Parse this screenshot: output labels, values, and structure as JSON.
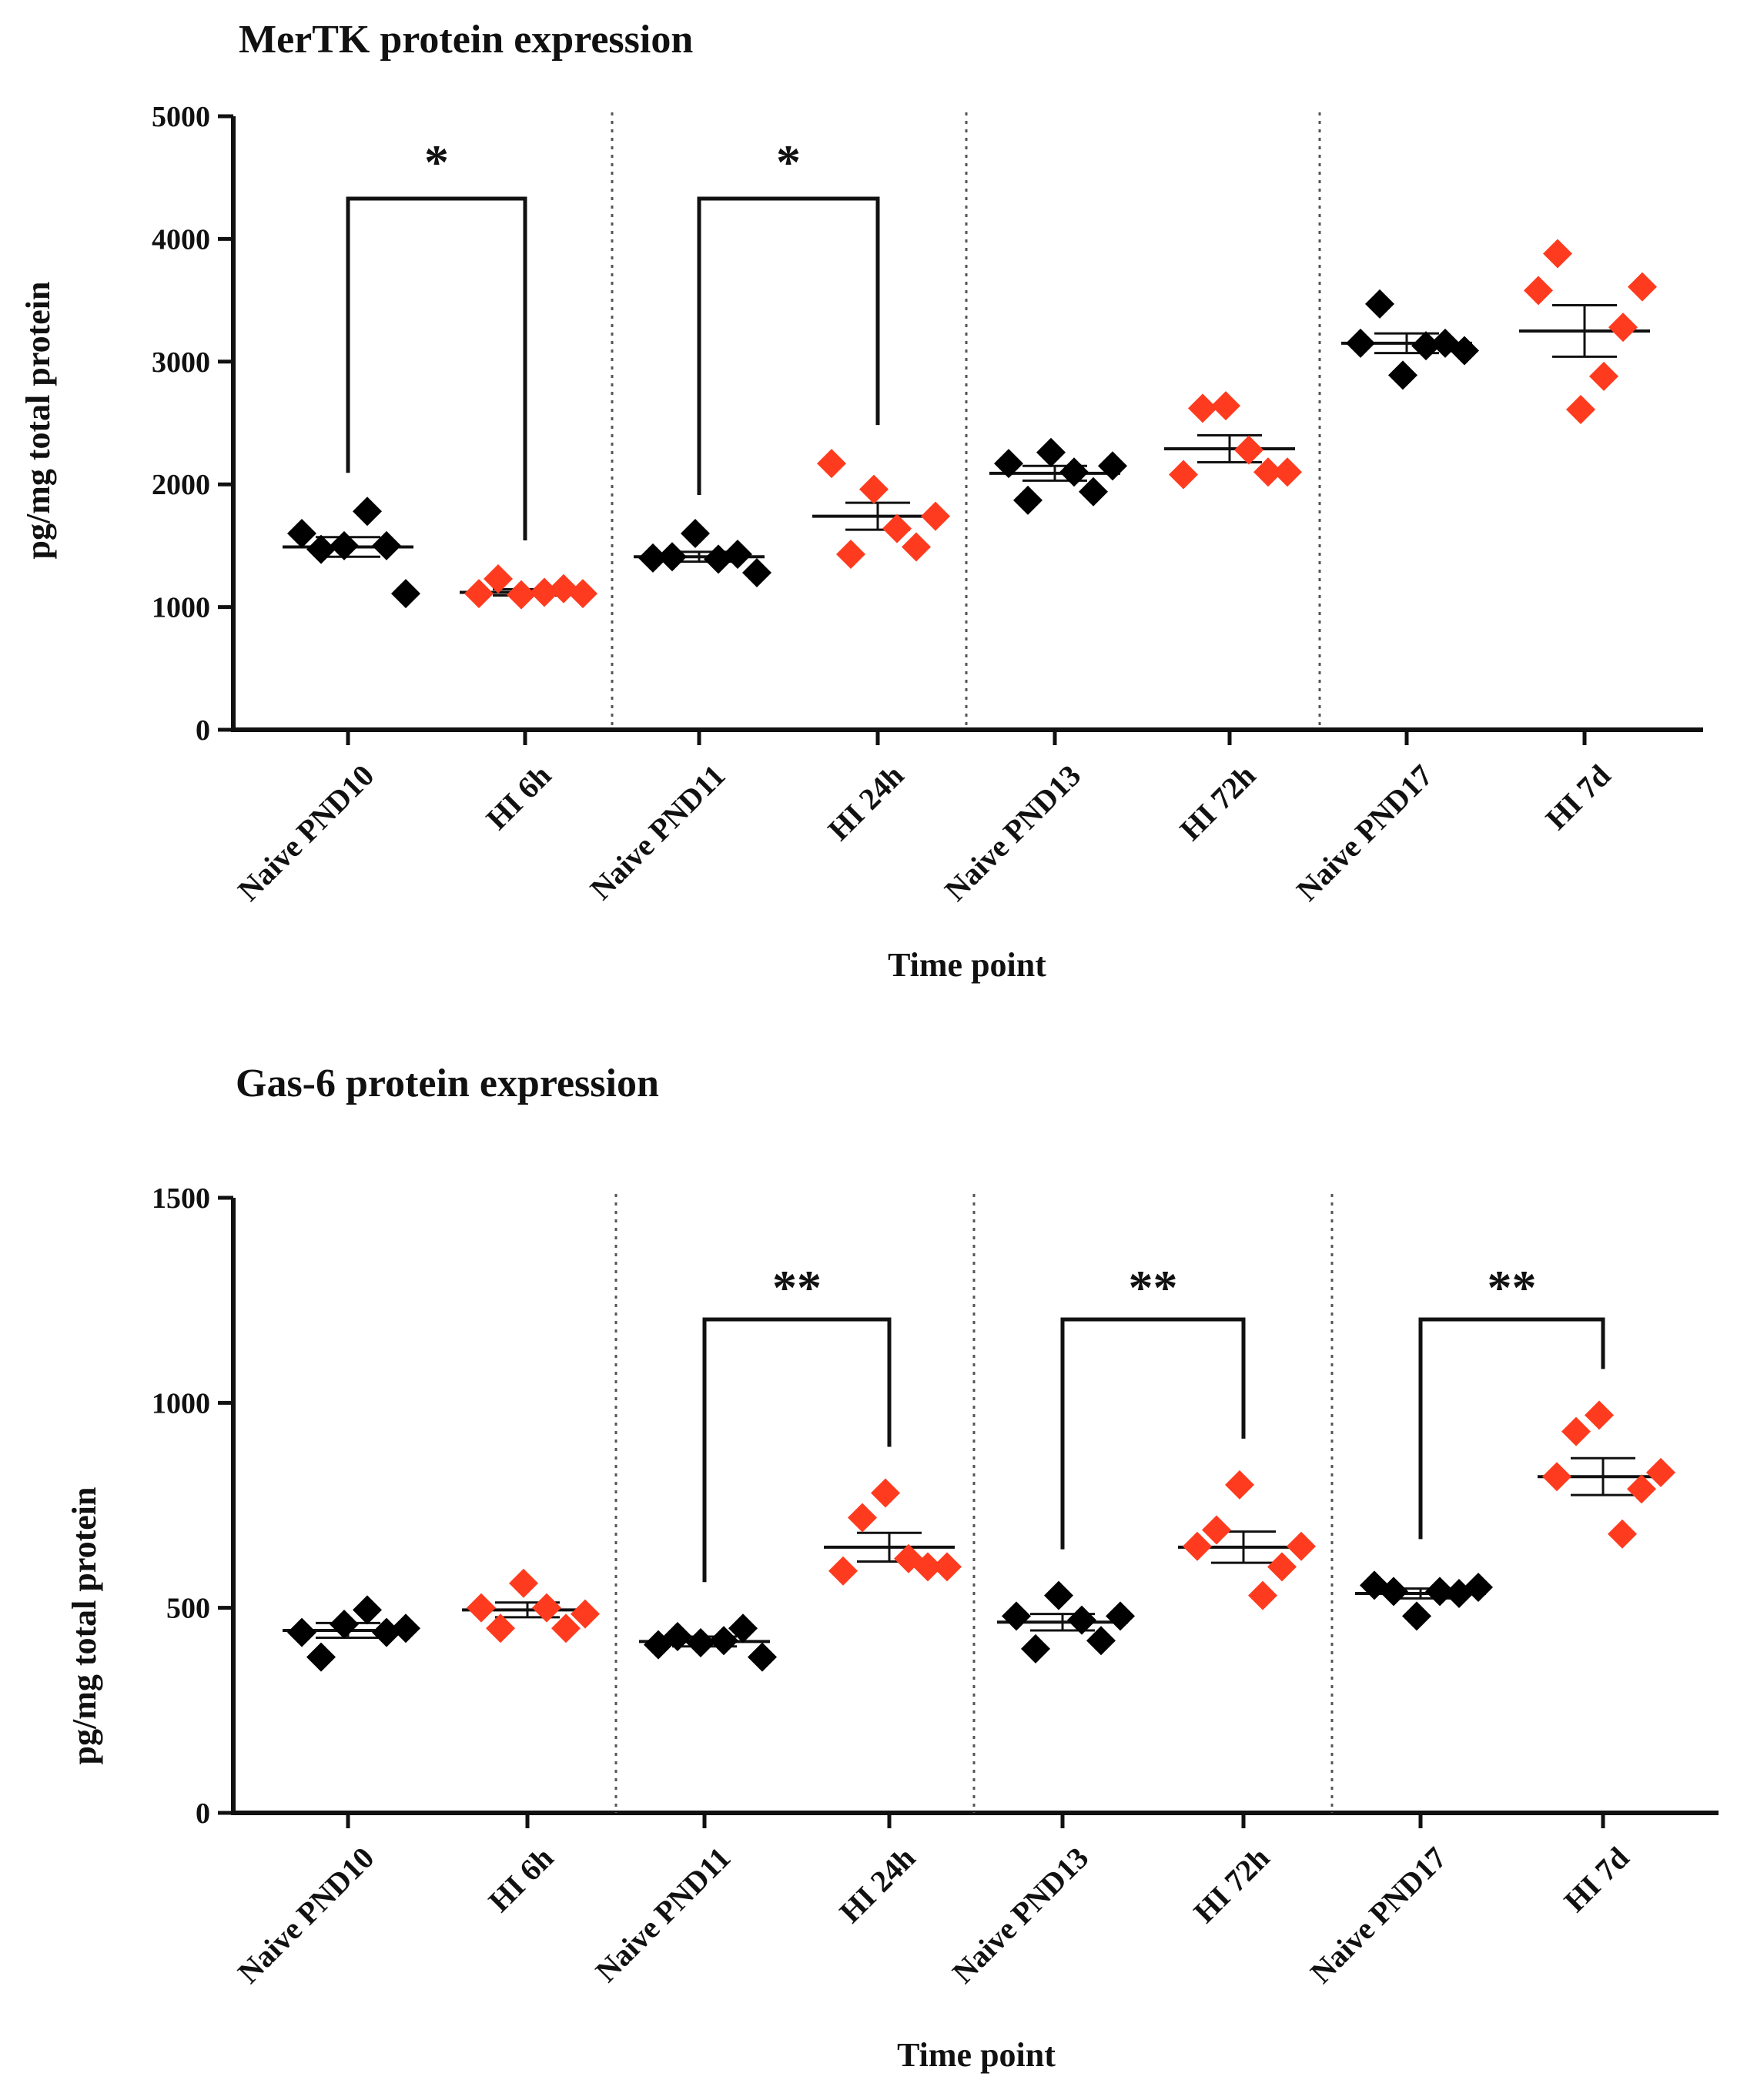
{
  "chart_data": [
    {
      "type": "scatter",
      "title": "MerTK protein expression",
      "xlabel": "Time point",
      "ylabel": "pg/mg total protein",
      "ylim": [
        0,
        5000
      ],
      "yticks": [
        "0",
        "1000",
        "2000",
        "3000",
        "4000",
        "5000"
      ],
      "categories": [
        "Naive PND10",
        "HI 6h",
        "Naive PND11",
        "HI 24h",
        "Naive PND13",
        "HI 72h",
        "Naive PND17",
        "HI 7d"
      ],
      "colors": {
        "naive": "#000000",
        "hi": "#ff3b1f"
      },
      "series": [
        {
          "name": "Naive PND10",
          "group": "naive",
          "mean": 1490,
          "sem": 80,
          "values": [
            1600,
            1470,
            1500,
            1780,
            1500,
            1110
          ]
        },
        {
          "name": "HI 6h",
          "group": "hi",
          "mean": 1120,
          "sem": 25,
          "values": [
            1110,
            1230,
            1100,
            1120,
            1150,
            1110
          ]
        },
        {
          "name": "Naive PND11",
          "group": "naive",
          "mean": 1410,
          "sem": 40,
          "values": [
            1400,
            1410,
            1600,
            1390,
            1430,
            1280
          ]
        },
        {
          "name": "HI 24h",
          "group": "hi",
          "mean": 1740,
          "sem": 110,
          "values": [
            2170,
            1430,
            1960,
            1640,
            1490,
            1740
          ]
        },
        {
          "name": "Naive PND13",
          "group": "naive",
          "mean": 2090,
          "sem": 60,
          "values": [
            2170,
            1870,
            2260,
            2100,
            1940,
            2150
          ]
        },
        {
          "name": "HI 72h",
          "group": "hi",
          "mean": 2290,
          "sem": 110,
          "values": [
            2080,
            2620,
            2640,
            2280,
            2100,
            2100
          ]
        },
        {
          "name": "Naive PND17",
          "group": "naive",
          "mean": 3150,
          "sem": 80,
          "values": [
            3150,
            3470,
            2890,
            3130,
            3150,
            3090
          ]
        },
        {
          "name": "HI 7d",
          "group": "hi",
          "mean": 3250,
          "sem": 210,
          "values": [
            3580,
            3880,
            2610,
            2880,
            3280,
            3610
          ]
        }
      ],
      "significance": [
        {
          "pair": [
            "Naive PND10",
            "HI 6h"
          ],
          "label": "*"
        },
        {
          "pair": [
            "Naive PND11",
            "HI 24h"
          ],
          "label": "*"
        }
      ]
    },
    {
      "type": "scatter",
      "title": "Gas-6 protein expression",
      "xlabel": "Time point",
      "ylabel": "pg/mg total protein",
      "ylim": [
        0,
        1500
      ],
      "yticks": [
        "0",
        "500",
        "1000",
        "1500"
      ],
      "categories": [
        "Naive PND10",
        "HI 6h",
        "Naive PND11",
        "HI 24h",
        "Naive PND13",
        "HI 72h",
        "Naive PND17",
        "HI 7d"
      ],
      "colors": {
        "naive": "#000000",
        "hi": "#ff3b1f"
      },
      "series": [
        {
          "name": "Naive PND10",
          "group": "naive",
          "mean": 445,
          "sem": 18,
          "values": [
            440,
            380,
            460,
            495,
            440,
            450
          ]
        },
        {
          "name": "HI 6h",
          "group": "hi",
          "mean": 495,
          "sem": 18,
          "values": [
            500,
            450,
            560,
            500,
            450,
            485
          ]
        },
        {
          "name": "Naive PND11",
          "group": "naive",
          "mean": 418,
          "sem": 12,
          "values": [
            410,
            430,
            415,
            420,
            450,
            380
          ]
        },
        {
          "name": "HI 24h",
          "group": "hi",
          "mean": 648,
          "sem": 35,
          "values": [
            590,
            720,
            780,
            620,
            600,
            600
          ]
        },
        {
          "name": "Naive PND13",
          "group": "naive",
          "mean": 465,
          "sem": 20,
          "values": [
            480,
            400,
            530,
            470,
            420,
            480
          ]
        },
        {
          "name": "HI 72h",
          "group": "hi",
          "mean": 648,
          "sem": 38,
          "values": [
            650,
            690,
            800,
            530,
            600,
            650
          ]
        },
        {
          "name": "Naive PND17",
          "group": "naive",
          "mean": 535,
          "sem": 12,
          "values": [
            555,
            540,
            480,
            540,
            535,
            550
          ]
        },
        {
          "name": "HI 7d",
          "group": "hi",
          "mean": 820,
          "sem": 45,
          "values": [
            820,
            930,
            970,
            680,
            790,
            830
          ]
        }
      ],
      "significance": [
        {
          "pair": [
            "Naive PND11",
            "HI 24h"
          ],
          "label": "**"
        },
        {
          "pair": [
            "Naive PND13",
            "HI 72h"
          ],
          "label": "**"
        },
        {
          "pair": [
            "Naive PND17",
            "HI 7d"
          ],
          "label": "**"
        }
      ]
    }
  ]
}
